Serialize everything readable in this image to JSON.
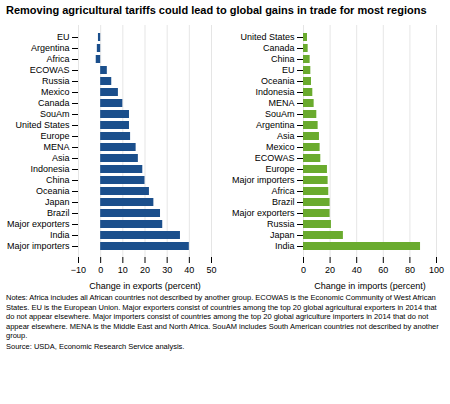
{
  "title": "Removing agricultural tariffs could lead to global gains in trade for most regions",
  "notes": [
    "Notes: Africa includes all African countries not described by another group. ECOWAS is the Economic Community of West African States. EU is the European Union. Major exporters consist of countries among the top 20 global agricultural exporters in 2014 that do not appear elsewhere. Major importers consist of countries among the top 20 global agriculture importers in 2014 that do not appear elsewhere. MENA is the Middle East and North Africa. SouAM includes South American countries not described by another group.",
    "Source: USDA, Economic Research Service analysis."
  ],
  "chart_data": [
    {
      "type": "bar",
      "orientation": "horizontal",
      "categories": [
        "EU",
        "Argentina",
        "Africa",
        "ECOWAS",
        "Russia",
        "Mexico",
        "Canada",
        "SouAm",
        "United States",
        "Europe",
        "MENA",
        "Asia",
        "Indonesia",
        "China",
        "Oceania",
        "Japan",
        "Brazil",
        "Major exporters",
        "India",
        "Major importers"
      ],
      "values": [
        -1.0,
        -1.5,
        -2.0,
        3.0,
        5.0,
        8.0,
        10.0,
        13.0,
        13.0,
        13.5,
        16.0,
        17.0,
        19.0,
        20.0,
        22.0,
        24.0,
        27.0,
        28.0,
        36.0,
        40.0
      ],
      "color": "#1B4F8C",
      "xlabel": "Change in exports (percent)",
      "xlim": [
        -10,
        50
      ],
      "xticks": [
        -10,
        0,
        10,
        20,
        30,
        40,
        50
      ],
      "grid": true
    },
    {
      "type": "bar",
      "orientation": "horizontal",
      "categories": [
        "United States",
        "Canada",
        "China",
        "EU",
        "Oceania",
        "Indonesia",
        "MENA",
        "SouAm",
        "Argentina",
        "Asia",
        "Mexico",
        "ECOWAS",
        "Europe",
        "Major importers",
        "Africa",
        "Brazil",
        "Major exporters",
        "Russia",
        "Japan",
        "India"
      ],
      "values": [
        3.0,
        3.5,
        5.0,
        5.5,
        6.0,
        7.0,
        8.0,
        10.0,
        11.0,
        12.0,
        12.5,
        13.0,
        18.0,
        18.5,
        19.0,
        20.0,
        20.0,
        21.0,
        30.0,
        88.0
      ],
      "color": "#6AAB2E",
      "xlabel": "Change in imports (percent)",
      "xlim": [
        0,
        100
      ],
      "xticks": [
        0,
        20,
        40,
        60,
        80,
        100
      ],
      "grid": true
    }
  ]
}
